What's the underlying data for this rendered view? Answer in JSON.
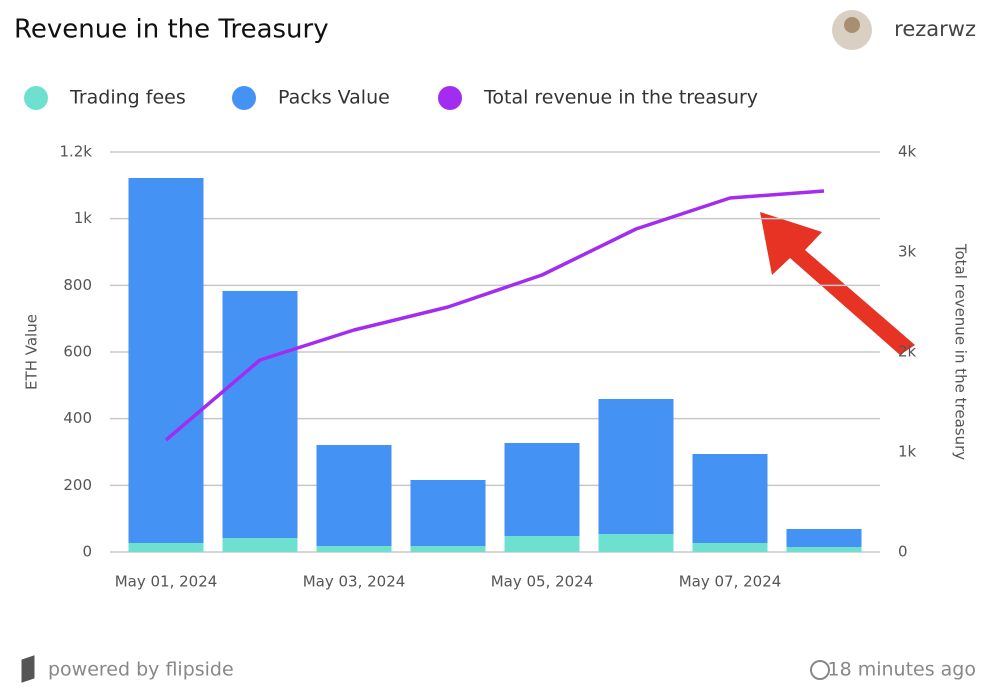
{
  "chart_data": {
    "type": "bar",
    "title": "Revenue in the Treasury",
    "categories": [
      "May 01, 2024",
      null,
      "May 03, 2024",
      null,
      "May 05, 2024",
      null,
      "May 07, 2024",
      null
    ],
    "series": [
      {
        "name": "Trading fees",
        "color": "#6ee0cf",
        "type": "bar",
        "values": [
          27,
          42,
          18,
          18,
          48,
          54,
          27,
          15
        ]
      },
      {
        "name": "Packs Value",
        "color": "#4592f5",
        "type": "bar",
        "values": [
          1095,
          741,
          303,
          198,
          279,
          405,
          267,
          54
        ]
      },
      {
        "name": "Total revenue in the treasury",
        "color": "#a22cf0",
        "type": "line",
        "axis": "y2",
        "values": [
          1120,
          1920,
          2220,
          2450,
          2770,
          3230,
          3540,
          3610
        ]
      }
    ],
    "ylabel": "ETH Value",
    "y2label": "Total revenue in the treasury",
    "ylim": [
      0,
      1200
    ],
    "yticks": [
      0,
      200,
      400,
      600,
      800,
      {
        "value": 1000,
        "label": "1k"
      },
      {
        "value": 1200,
        "label": "1.2k"
      }
    ],
    "y2lim": [
      0,
      4000
    ],
    "y2ticks": [
      0,
      {
        "value": 1000,
        "label": "1k"
      },
      {
        "value": 2000,
        "label": "2k"
      },
      {
        "value": 3000,
        "label": "3k"
      },
      {
        "value": 4000,
        "label": "4k"
      }
    ],
    "stacked": true,
    "grid": true
  },
  "header": {
    "user": "rezarwz"
  },
  "footer": {
    "brand": "powered by flipside",
    "updated": "18 minutes ago"
  }
}
